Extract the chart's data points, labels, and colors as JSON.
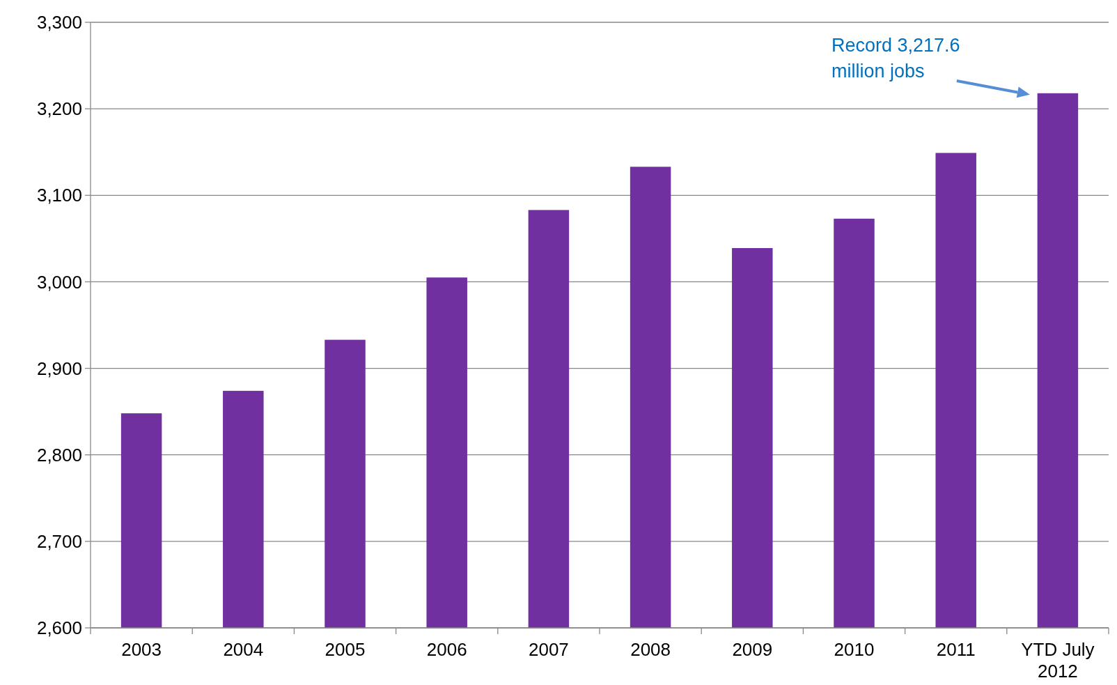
{
  "chart_data": {
    "type": "bar",
    "categories": [
      "2003",
      "2004",
      "2005",
      "2006",
      "2007",
      "2008",
      "2009",
      "2010",
      "2011",
      "YTD July 2012"
    ],
    "values": [
      2848,
      2874,
      2933,
      3005,
      3083,
      3133,
      3039,
      3073,
      3149,
      3218
    ],
    "color": "#7030a0",
    "ylim": [
      2600,
      3300
    ],
    "yticks": [
      {
        "value": 2600,
        "label": "2,600"
      },
      {
        "value": 2700,
        "label": "2,700"
      },
      {
        "value": 2800,
        "label": "2,800"
      },
      {
        "value": 2900,
        "label": "2,900"
      },
      {
        "value": 3000,
        "label": "3,000"
      },
      {
        "value": 3100,
        "label": "3,100"
      },
      {
        "value": 3200,
        "label": "3,200"
      },
      {
        "value": 3300,
        "label": "3,300"
      }
    ],
    "grid": "y",
    "annotations": [
      "Record 3,217.6 million jobs"
    ]
  }
}
